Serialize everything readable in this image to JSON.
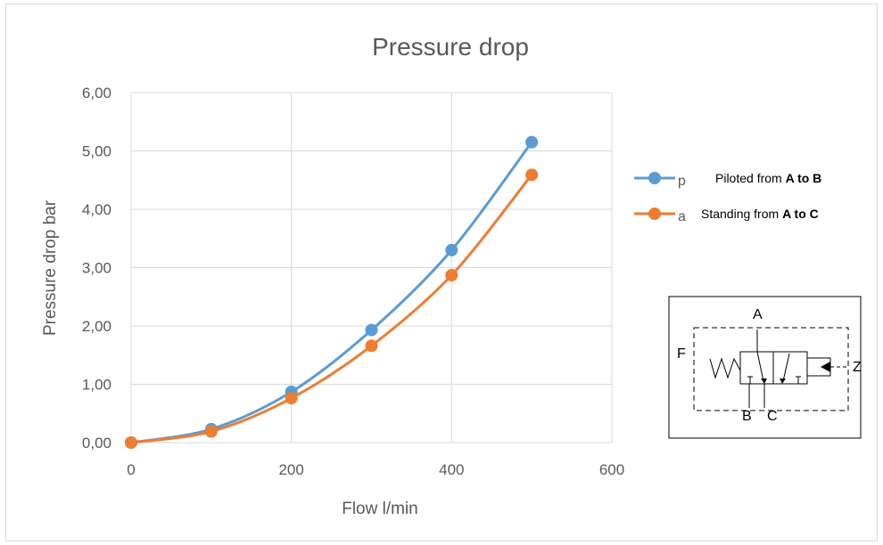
{
  "chart_data": {
    "type": "line",
    "title": "Pressure drop",
    "xlabel": "Flow l/min",
    "ylabel": "Pressure drop bar",
    "xlim": [
      0,
      600
    ],
    "ylim": [
      0,
      6
    ],
    "x_ticks": [
      "0",
      "200",
      "400",
      "600"
    ],
    "y_ticks": [
      "0,00",
      "1,00",
      "2,00",
      "3,00",
      "4,00",
      "5,00",
      "6,00"
    ],
    "grid": true,
    "legend_position": "right",
    "x": [
      0,
      100,
      200,
      300,
      400,
      500
    ],
    "series": [
      {
        "name": "p",
        "description": [
          "Piloted from ",
          "A to B"
        ],
        "color": "#5b9bd5",
        "values": [
          0.0,
          0.23,
          0.87,
          1.93,
          3.3,
          5.15
        ]
      },
      {
        "name": "a",
        "description": [
          "Standing from ",
          "A to C"
        ],
        "color": "#ed7d31",
        "values": [
          0.0,
          0.19,
          0.76,
          1.66,
          2.87,
          4.59
        ]
      }
    ]
  },
  "symbol": {
    "labels": {
      "A": "A",
      "B": "B",
      "C": "C",
      "F": "F",
      "Z": "Z"
    }
  }
}
